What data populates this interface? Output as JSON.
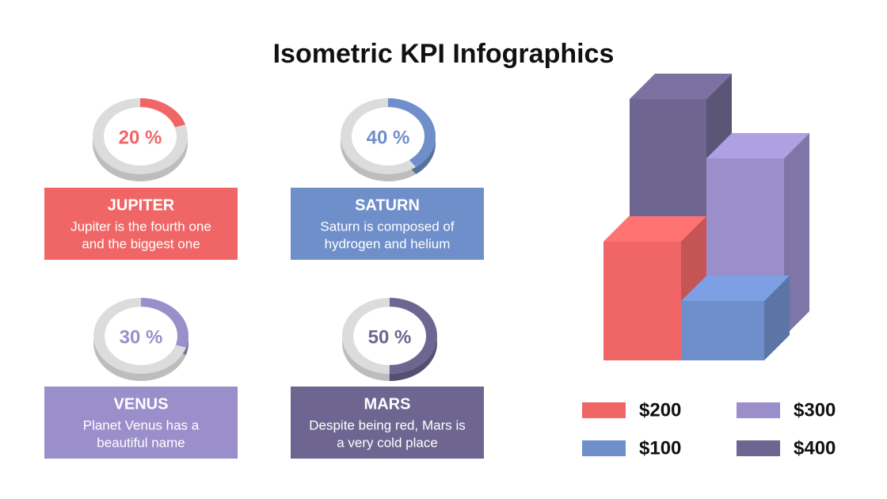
{
  "title": "Isometric KPI Infographics",
  "kpis": [
    {
      "value": 20,
      "value_label": "20 %",
      "color": "#f06666",
      "name": "JUPITER",
      "description": [
        "Jupiter is the fourth one",
        "and the biggest one"
      ]
    },
    {
      "value": 40,
      "value_label": "40 %",
      "color": "#6f8fcb",
      "name": "SATURN",
      "description": [
        "Saturn is composed of",
        "hydrogen and helium"
      ]
    },
    {
      "value": 30,
      "value_label": "30 %",
      "color": "#9b8fcb",
      "name": "VENUS",
      "description": [
        "Planet Venus has a",
        "beautiful name"
      ]
    },
    {
      "value": 50,
      "value_label": "50 %",
      "color": "#6e6690",
      "name": "MARS",
      "description": [
        "Despite being red, Mars is",
        "a very cold place"
      ]
    }
  ],
  "bars": [
    {
      "value": 200,
      "label": "$200",
      "color": "#f06666"
    },
    {
      "value": 100,
      "label": "$100",
      "color": "#6f8fcb"
    },
    {
      "value": 300,
      "label": "$300",
      "color": "#9b8fcb"
    },
    {
      "value": 400,
      "label": "$400",
      "color": "#6e6690"
    }
  ]
}
